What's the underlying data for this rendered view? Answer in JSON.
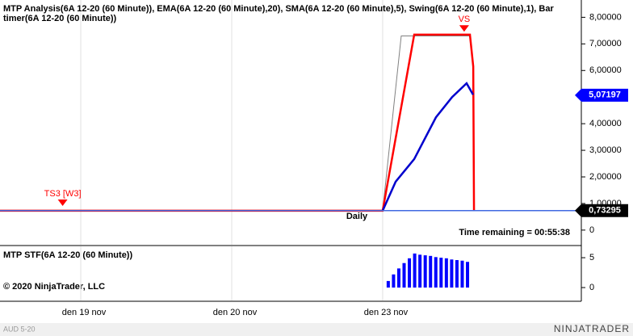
{
  "window": {
    "title": "MTP Analysis(6A 12-20 (60 Minute)), EMA(6A 12-20 (60 Minute),20), SMA(6A 12-20 (60 Minute),5), Swing(6A 12-20 (60 Minute),1), Bar timer(6A 12-20 (60 Minute))",
    "timer": "Time remaining = 00:55:38",
    "period": "Daily",
    "copyright": "© 2020 NinjaTrader, LLC",
    "instrument": "AUD 5-20",
    "brand": "NINJATRADER"
  },
  "chart_data": [
    {
      "type": "line",
      "grid": true,
      "xlim": [
        -0.535,
        3.316
      ],
      "xticks": [
        {
          "value": 0,
          "label": "den 19 nov"
        },
        {
          "value": 1,
          "label": "den 20 nov"
        },
        {
          "value": 2,
          "label": "den 23 nov"
        }
      ],
      "ylim": [
        -0.55,
        8.65
      ],
      "yticks": [
        0,
        {
          "value": 1,
          "label": "1,00000"
        },
        {
          "value": 2,
          "label": "2,00000"
        },
        {
          "value": 3,
          "label": "3,00000"
        },
        {
          "value": 4,
          "label": "4,00000"
        },
        {
          "value": 5,
          "label": "5,00000"
        },
        {
          "value": 6,
          "label": "6,00000"
        },
        {
          "value": 7,
          "label": "7,00000"
        },
        {
          "value": 8,
          "label": "8,00000"
        }
      ],
      "series": [
        {
          "color": "#808080",
          "x": [
            2.0,
            2.123,
            2.578
          ],
          "values": [
            0.73,
            7.3,
            7.3
          ]
        },
        {
          "color": "#ff0000",
          "x": [
            -0.535,
            2.0,
            2.209,
            2.578,
            2.6,
            2.605
          ],
          "values": [
            0.73,
            0.73,
            7.35,
            7.35,
            6.15,
            0.73
          ]
        },
        {
          "color": "#0000cd",
          "x": [
            2.0,
            2.086,
            2.209,
            2.353,
            2.46,
            2.556,
            2.599
          ],
          "values": [
            0.73,
            1.82,
            2.67,
            4.24,
            5.0,
            5.52,
            5.09
          ]
        }
      ],
      "price_markers": [
        {
          "value": 5.07197,
          "label": "5,07197",
          "color": "#0000ff",
          "line": false
        },
        {
          "value": 0.73295,
          "label": "0,73295",
          "color": "#000000",
          "line": true
        }
      ],
      "annotations": [
        {
          "text": "VS",
          "x": 2.54,
          "value": 7.55,
          "color": "#ff0000"
        },
        {
          "text": "TS3 [W3]",
          "x": -0.12,
          "value": 1.0,
          "color": "#ff0000"
        }
      ]
    },
    {
      "type": "bar",
      "title": "MTP STF(6A 12-20 (60 Minute))",
      "color": "#0000ff",
      "grid": true,
      "xlim": [
        -0.535,
        3.316
      ],
      "ylim": [
        -2.16,
        6.9
      ],
      "yticks": [
        0,
        5
      ],
      "x": [
        2.037,
        2.072,
        2.107,
        2.142,
        2.177,
        2.212,
        2.247,
        2.282,
        2.317,
        2.352,
        2.387,
        2.422,
        2.457,
        2.492,
        2.527,
        2.562
      ],
      "values": [
        1.1,
        2.2,
        3.2,
        4.1,
        4.9,
        5.7,
        5.5,
        5.4,
        5.3,
        5.1,
        5.0,
        4.9,
        4.7,
        4.6,
        4.5,
        4.3
      ]
    }
  ]
}
